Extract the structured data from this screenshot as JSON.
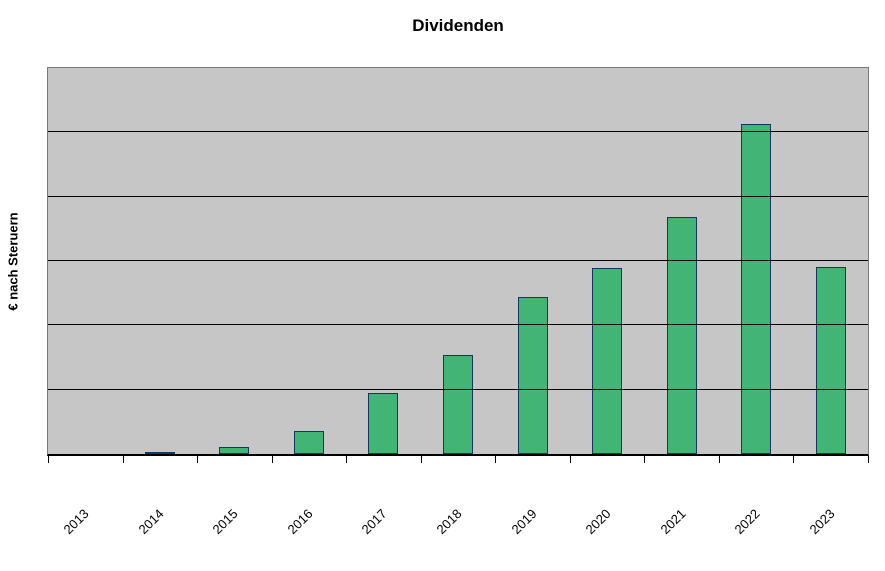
{
  "chart_data": {
    "type": "bar",
    "title": "Dividenden",
    "xlabel": "",
    "ylabel": "€ nach Steruern",
    "categories": [
      "2013",
      "2014",
      "2015",
      "2016",
      "2017",
      "2018",
      "2019",
      "2020",
      "2021",
      "2022",
      "2023"
    ],
    "values": [
      0,
      0.03,
      0.11,
      0.36,
      0.95,
      1.54,
      2.44,
      2.89,
      3.68,
      5.13,
      2.91
    ],
    "value_unit": "gridline divisions (y axis shows no numeric tick labels)",
    "ylim": [
      0,
      6
    ],
    "gridline_interval": 1,
    "grid": "horizontal",
    "legend_position": "none",
    "x_tick_rotation_deg": 45,
    "colors": {
      "bar_fill": "#42B476",
      "bar_border": "#16365C",
      "plot_background": "#C6C6C6",
      "gridline": "#000000",
      "chart_background": "#FFFFFF",
      "text": "#000000"
    }
  }
}
